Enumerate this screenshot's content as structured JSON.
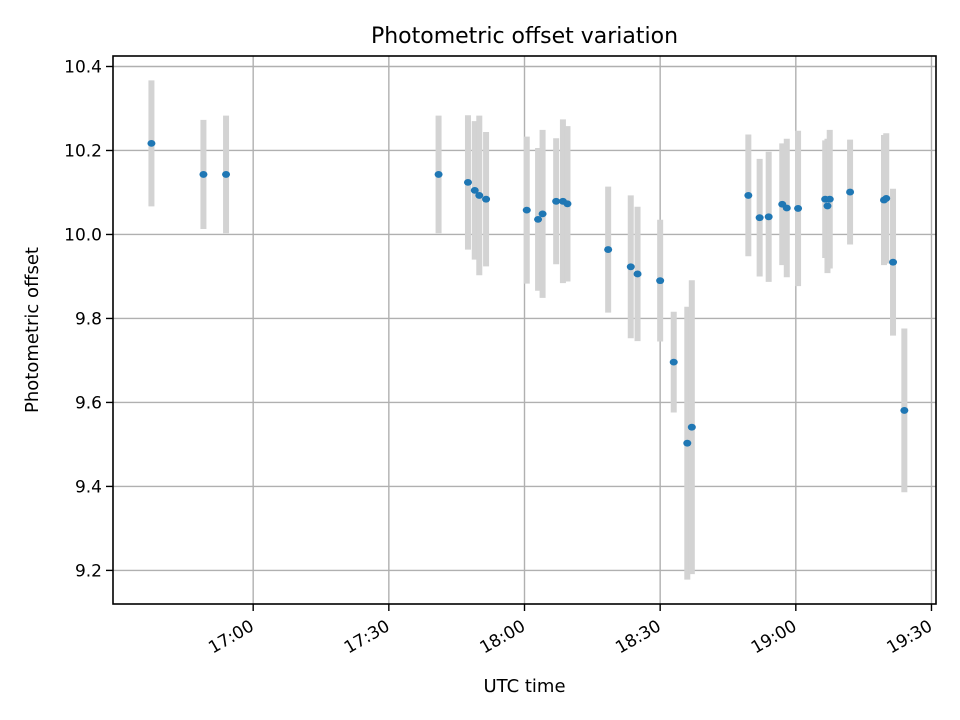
{
  "chart_data": {
    "type": "scatter",
    "title": "Photometric offset variation",
    "xlabel": "UTC time",
    "ylabel": "Photometric offset",
    "x_axis": {
      "type": "time",
      "min": "16:29",
      "max": "19:31",
      "ticks": [
        "17:00",
        "17:30",
        "18:00",
        "18:30",
        "19:00",
        "19:30"
      ]
    },
    "y_axis": {
      "min": 9.12,
      "max": 10.425,
      "ticks": [
        9.2,
        9.4,
        9.6,
        9.8,
        10.0,
        10.2,
        10.4
      ],
      "tick_labels": [
        "9.2",
        "9.4",
        "9.6",
        "9.8",
        "10.0",
        "10.2",
        "10.4"
      ]
    },
    "grid": true,
    "errorbar_color": "#d3d3d3",
    "marker_color": "#1f77b4",
    "points": [
      {
        "x": "16:37:30",
        "y": 10.217,
        "yerr": 0.15
      },
      {
        "x": "16:49:00",
        "y": 10.143,
        "yerr": 0.13
      },
      {
        "x": "16:54:00",
        "y": 10.143,
        "yerr": 0.14
      },
      {
        "x": "17:41:00",
        "y": 10.143,
        "yerr": 0.14
      },
      {
        "x": "17:47:30",
        "y": 10.124,
        "yerr": 0.16
      },
      {
        "x": "17:49:00",
        "y": 10.105,
        "yerr": 0.165
      },
      {
        "x": "17:50:00",
        "y": 10.093,
        "yerr": 0.19
      },
      {
        "x": "17:51:30",
        "y": 10.084,
        "yerr": 0.16
      },
      {
        "x": "18:00:30",
        "y": 10.058,
        "yerr": 0.175
      },
      {
        "x": "18:03:00",
        "y": 10.036,
        "yerr": 0.17
      },
      {
        "x": "18:04:00",
        "y": 10.049,
        "yerr": 0.2
      },
      {
        "x": "18:07:00",
        "y": 10.079,
        "yerr": 0.15
      },
      {
        "x": "18:08:30",
        "y": 10.079,
        "yerr": 0.195
      },
      {
        "x": "18:09:30",
        "y": 10.073,
        "yerr": 0.185
      },
      {
        "x": "18:18:30",
        "y": 9.964,
        "yerr": 0.15
      },
      {
        "x": "18:23:30",
        "y": 9.923,
        "yerr": 0.17
      },
      {
        "x": "18:25:00",
        "y": 9.906,
        "yerr": 0.16
      },
      {
        "x": "18:30:00",
        "y": 9.89,
        "yerr": 0.145
      },
      {
        "x": "18:33:00",
        "y": 9.696,
        "yerr": 0.12
      },
      {
        "x": "18:36:00",
        "y": 9.503,
        "yerr": 0.325
      },
      {
        "x": "18:37:00",
        "y": 9.541,
        "yerr": 0.35
      },
      {
        "x": "18:49:30",
        "y": 10.093,
        "yerr": 0.145
      },
      {
        "x": "18:52:00",
        "y": 10.04,
        "yerr": 0.14
      },
      {
        "x": "18:54:00",
        "y": 10.042,
        "yerr": 0.155
      },
      {
        "x": "18:57:00",
        "y": 10.072,
        "yerr": 0.145
      },
      {
        "x": "18:58:00",
        "y": 10.063,
        "yerr": 0.165
      },
      {
        "x": "19:00:30",
        "y": 10.062,
        "yerr": 0.185
      },
      {
        "x": "19:06:30",
        "y": 10.084,
        "yerr": 0.14
      },
      {
        "x": "19:07:00",
        "y": 10.068,
        "yerr": 0.16
      },
      {
        "x": "19:07:30",
        "y": 10.084,
        "yerr": 0.165
      },
      {
        "x": "19:12:00",
        "y": 10.101,
        "yerr": 0.125
      },
      {
        "x": "19:19:30",
        "y": 10.082,
        "yerr": 0.155
      },
      {
        "x": "19:20:00",
        "y": 10.086,
        "yerr": 0.155
      },
      {
        "x": "19:21:30",
        "y": 9.934,
        "yerr": 0.175
      },
      {
        "x": "19:24:00",
        "y": 9.581,
        "yerr": 0.195
      }
    ]
  }
}
